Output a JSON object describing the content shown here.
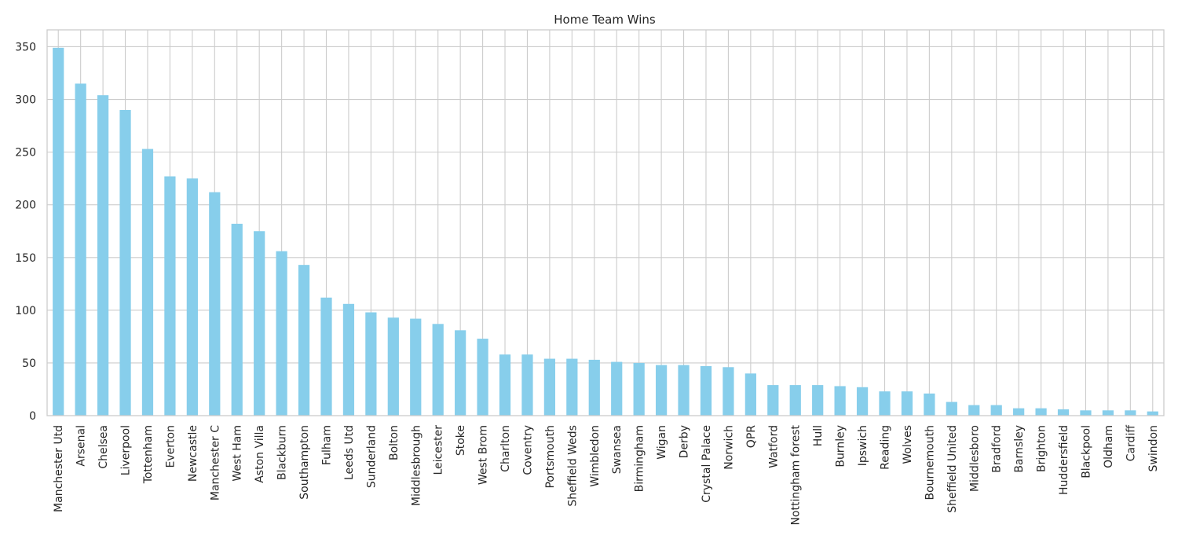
{
  "chart_data": {
    "type": "bar",
    "title": "Home Team Wins",
    "xlabel": "",
    "ylabel": "",
    "ylim": [
      0,
      366
    ],
    "yticks": [
      0,
      50,
      100,
      150,
      200,
      250,
      300,
      350
    ],
    "grid": true,
    "bar_color": "#87ceeb",
    "categories": [
      "Manchester Utd",
      "Arsenal",
      "Chelsea",
      "Liverpool",
      "Tottenham",
      "Everton",
      "Newcastle",
      "Manchester C",
      "West Ham",
      "Aston Villa",
      "Blackburn",
      "Southampton",
      "Fulham",
      "Leeds Utd",
      "Sunderland",
      "Bolton",
      "Middlesbrough",
      "Leicester",
      "Stoke",
      "West Brom",
      "Charlton",
      "Coventry",
      "Portsmouth",
      "Sheffield Weds",
      "Wimbledon",
      "Swansea",
      "Birmingham",
      "Wigan",
      "Derby",
      "Crystal Palace",
      "Norwich",
      "QPR",
      "Watford",
      "Nottingham forest",
      "Hull",
      "Burnley",
      "Ipswich",
      "Reading",
      "Wolves",
      "Bournemouth",
      "Sheffield United",
      "Middlesboro",
      "Bradford",
      "Barnsley",
      "Brighton",
      "Huddersfield",
      "Blackpool",
      "Oldham",
      "Cardiff",
      "Swindon"
    ],
    "values": [
      349,
      315,
      304,
      290,
      253,
      227,
      225,
      212,
      182,
      175,
      156,
      143,
      112,
      106,
      98,
      93,
      92,
      87,
      81,
      73,
      58,
      58,
      54,
      54,
      53,
      51,
      50,
      48,
      48,
      47,
      46,
      40,
      29,
      29,
      29,
      28,
      27,
      23,
      23,
      21,
      13,
      10,
      10,
      7,
      7,
      6,
      5,
      5,
      5,
      4
    ]
  }
}
